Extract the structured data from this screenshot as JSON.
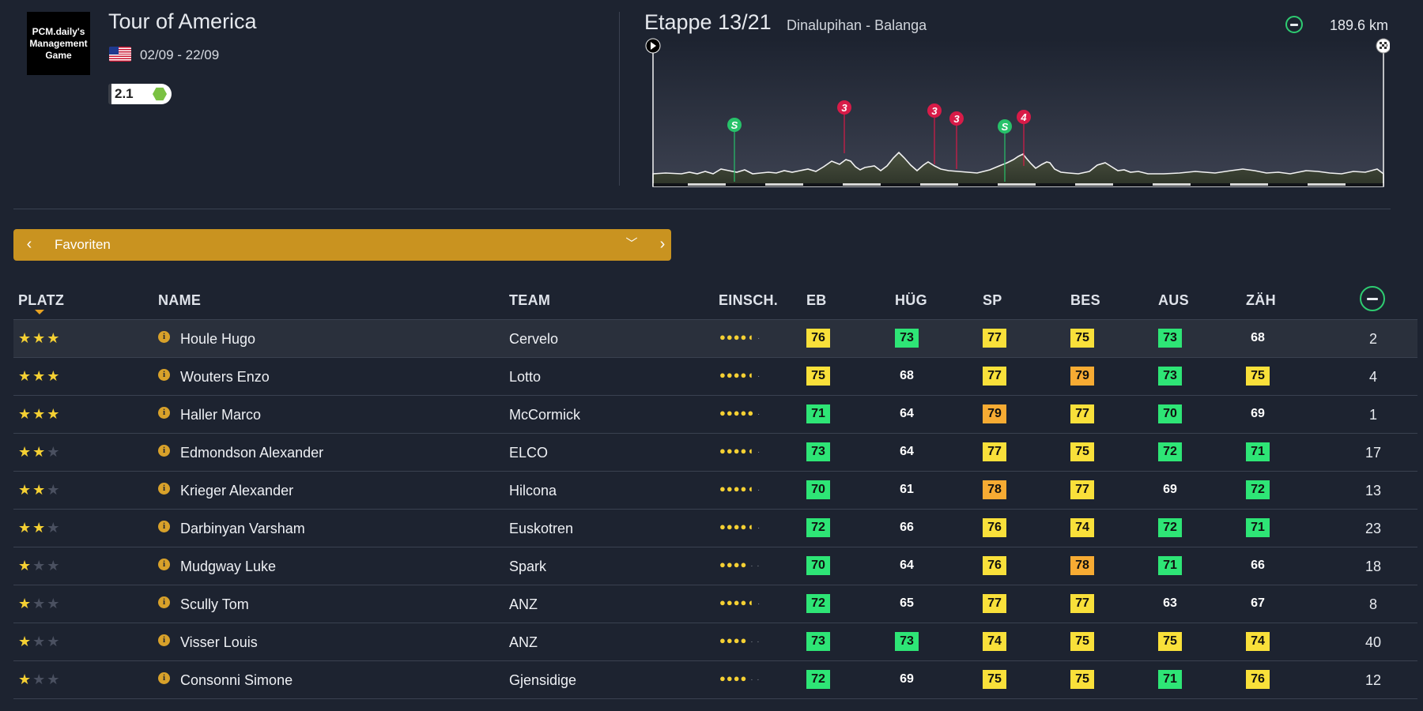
{
  "header": {
    "logo_text": "PCM.daily's Management Game",
    "race_name": "Tour of America",
    "race_dates": "02/09 - 22/09",
    "race_category": "2.1",
    "stage_label": "Etappe 13/21",
    "stage_route": "Dinalupihan - Balanga",
    "stage_distance": "189.6 km",
    "profile_markers": [
      {
        "type": "sprint",
        "label": "S",
        "color": "#27c26a"
      },
      {
        "type": "climb",
        "label": "3",
        "color": "#d81b48"
      },
      {
        "type": "climb",
        "label": "3",
        "color": "#d81b48"
      },
      {
        "type": "climb",
        "label": "3",
        "color": "#d81b48"
      },
      {
        "type": "sprint",
        "label": "S",
        "color": "#27c26a"
      },
      {
        "type": "climb",
        "label": "4",
        "color": "#d81b48"
      }
    ]
  },
  "selector": {
    "label": "Favoriten",
    "prev_icon": "chevron-left-icon",
    "next_icon": "chevron-right-icon",
    "dropdown_icon": "chevron-down-icon"
  },
  "colors": {
    "green": "#2ee576",
    "yellow": "#f9e03a",
    "orange": "#f7ab33",
    "accent": "#c99320",
    "background": "#1d2330"
  },
  "table": {
    "columns": [
      "PLATZ",
      "NAME",
      "TEAM",
      "EINSCH.",
      "EB",
      "HÜG",
      "SP",
      "BES",
      "AUS",
      "ZÄH"
    ],
    "rows": [
      {
        "stars": 3,
        "name": "Houle Hugo",
        "team": "Cervelo",
        "rating_dots": 4.5,
        "stats": [
          {
            "v": "76",
            "c": "yellow"
          },
          {
            "v": "73",
            "c": "green"
          },
          {
            "v": "77",
            "c": "yellow"
          },
          {
            "v": "75",
            "c": "yellow"
          },
          {
            "v": "73",
            "c": "green"
          },
          {
            "v": "68",
            "c": "none"
          }
        ],
        "rank": "2"
      },
      {
        "stars": 3,
        "name": "Wouters Enzo",
        "team": "Lotto",
        "rating_dots": 4.5,
        "stats": [
          {
            "v": "75",
            "c": "yellow"
          },
          {
            "v": "68",
            "c": "none"
          },
          {
            "v": "77",
            "c": "yellow"
          },
          {
            "v": "79",
            "c": "orange"
          },
          {
            "v": "73",
            "c": "green"
          },
          {
            "v": "75",
            "c": "yellow"
          }
        ],
        "rank": "4"
      },
      {
        "stars": 3,
        "name": "Haller Marco",
        "team": "McCormick",
        "rating_dots": 5,
        "stats": [
          {
            "v": "71",
            "c": "green"
          },
          {
            "v": "64",
            "c": "none"
          },
          {
            "v": "79",
            "c": "orange"
          },
          {
            "v": "77",
            "c": "yellow"
          },
          {
            "v": "70",
            "c": "green"
          },
          {
            "v": "69",
            "c": "none"
          }
        ],
        "rank": "1"
      },
      {
        "stars": 2,
        "name": "Edmondson Alexander",
        "team": "ELCO",
        "rating_dots": 4.5,
        "stats": [
          {
            "v": "73",
            "c": "green"
          },
          {
            "v": "64",
            "c": "none"
          },
          {
            "v": "77",
            "c": "yellow"
          },
          {
            "v": "75",
            "c": "yellow"
          },
          {
            "v": "72",
            "c": "green"
          },
          {
            "v": "71",
            "c": "green"
          }
        ],
        "rank": "17"
      },
      {
        "stars": 2,
        "name": "Krieger Alexander",
        "team": "Hilcona",
        "rating_dots": 4.5,
        "stats": [
          {
            "v": "70",
            "c": "green"
          },
          {
            "v": "61",
            "c": "none"
          },
          {
            "v": "78",
            "c": "orange"
          },
          {
            "v": "77",
            "c": "yellow"
          },
          {
            "v": "69",
            "c": "none"
          },
          {
            "v": "72",
            "c": "green"
          }
        ],
        "rank": "13"
      },
      {
        "stars": 2,
        "name": "Darbinyan Varsham",
        "team": "Euskotren",
        "rating_dots": 4.5,
        "stats": [
          {
            "v": "72",
            "c": "green"
          },
          {
            "v": "66",
            "c": "none"
          },
          {
            "v": "76",
            "c": "yellow"
          },
          {
            "v": "74",
            "c": "yellow"
          },
          {
            "v": "72",
            "c": "green"
          },
          {
            "v": "71",
            "c": "green"
          }
        ],
        "rank": "23"
      },
      {
        "stars": 1,
        "name": "Mudgway Luke",
        "team": "Spark",
        "rating_dots": 4,
        "stats": [
          {
            "v": "70",
            "c": "green"
          },
          {
            "v": "64",
            "c": "none"
          },
          {
            "v": "76",
            "c": "yellow"
          },
          {
            "v": "78",
            "c": "orange"
          },
          {
            "v": "71",
            "c": "green"
          },
          {
            "v": "66",
            "c": "none"
          }
        ],
        "rank": "18"
      },
      {
        "stars": 1,
        "name": "Scully Tom",
        "team": "ANZ",
        "rating_dots": 4.5,
        "stats": [
          {
            "v": "72",
            "c": "green"
          },
          {
            "v": "65",
            "c": "none"
          },
          {
            "v": "77",
            "c": "yellow"
          },
          {
            "v": "77",
            "c": "yellow"
          },
          {
            "v": "63",
            "c": "none"
          },
          {
            "v": "67",
            "c": "none"
          }
        ],
        "rank": "8"
      },
      {
        "stars": 1,
        "name": "Visser Louis",
        "team": "ANZ",
        "rating_dots": 4,
        "stats": [
          {
            "v": "73",
            "c": "green"
          },
          {
            "v": "73",
            "c": "green"
          },
          {
            "v": "74",
            "c": "yellow"
          },
          {
            "v": "75",
            "c": "yellow"
          },
          {
            "v": "75",
            "c": "yellow"
          },
          {
            "v": "74",
            "c": "yellow"
          }
        ],
        "rank": "40"
      },
      {
        "stars": 1,
        "name": "Consonni Simone",
        "team": "Gjensidige",
        "rating_dots": 4,
        "stats": [
          {
            "v": "72",
            "c": "green"
          },
          {
            "v": "69",
            "c": "none"
          },
          {
            "v": "75",
            "c": "yellow"
          },
          {
            "v": "75",
            "c": "yellow"
          },
          {
            "v": "71",
            "c": "green"
          },
          {
            "v": "76",
            "c": "yellow"
          }
        ],
        "rank": "12"
      }
    ]
  }
}
